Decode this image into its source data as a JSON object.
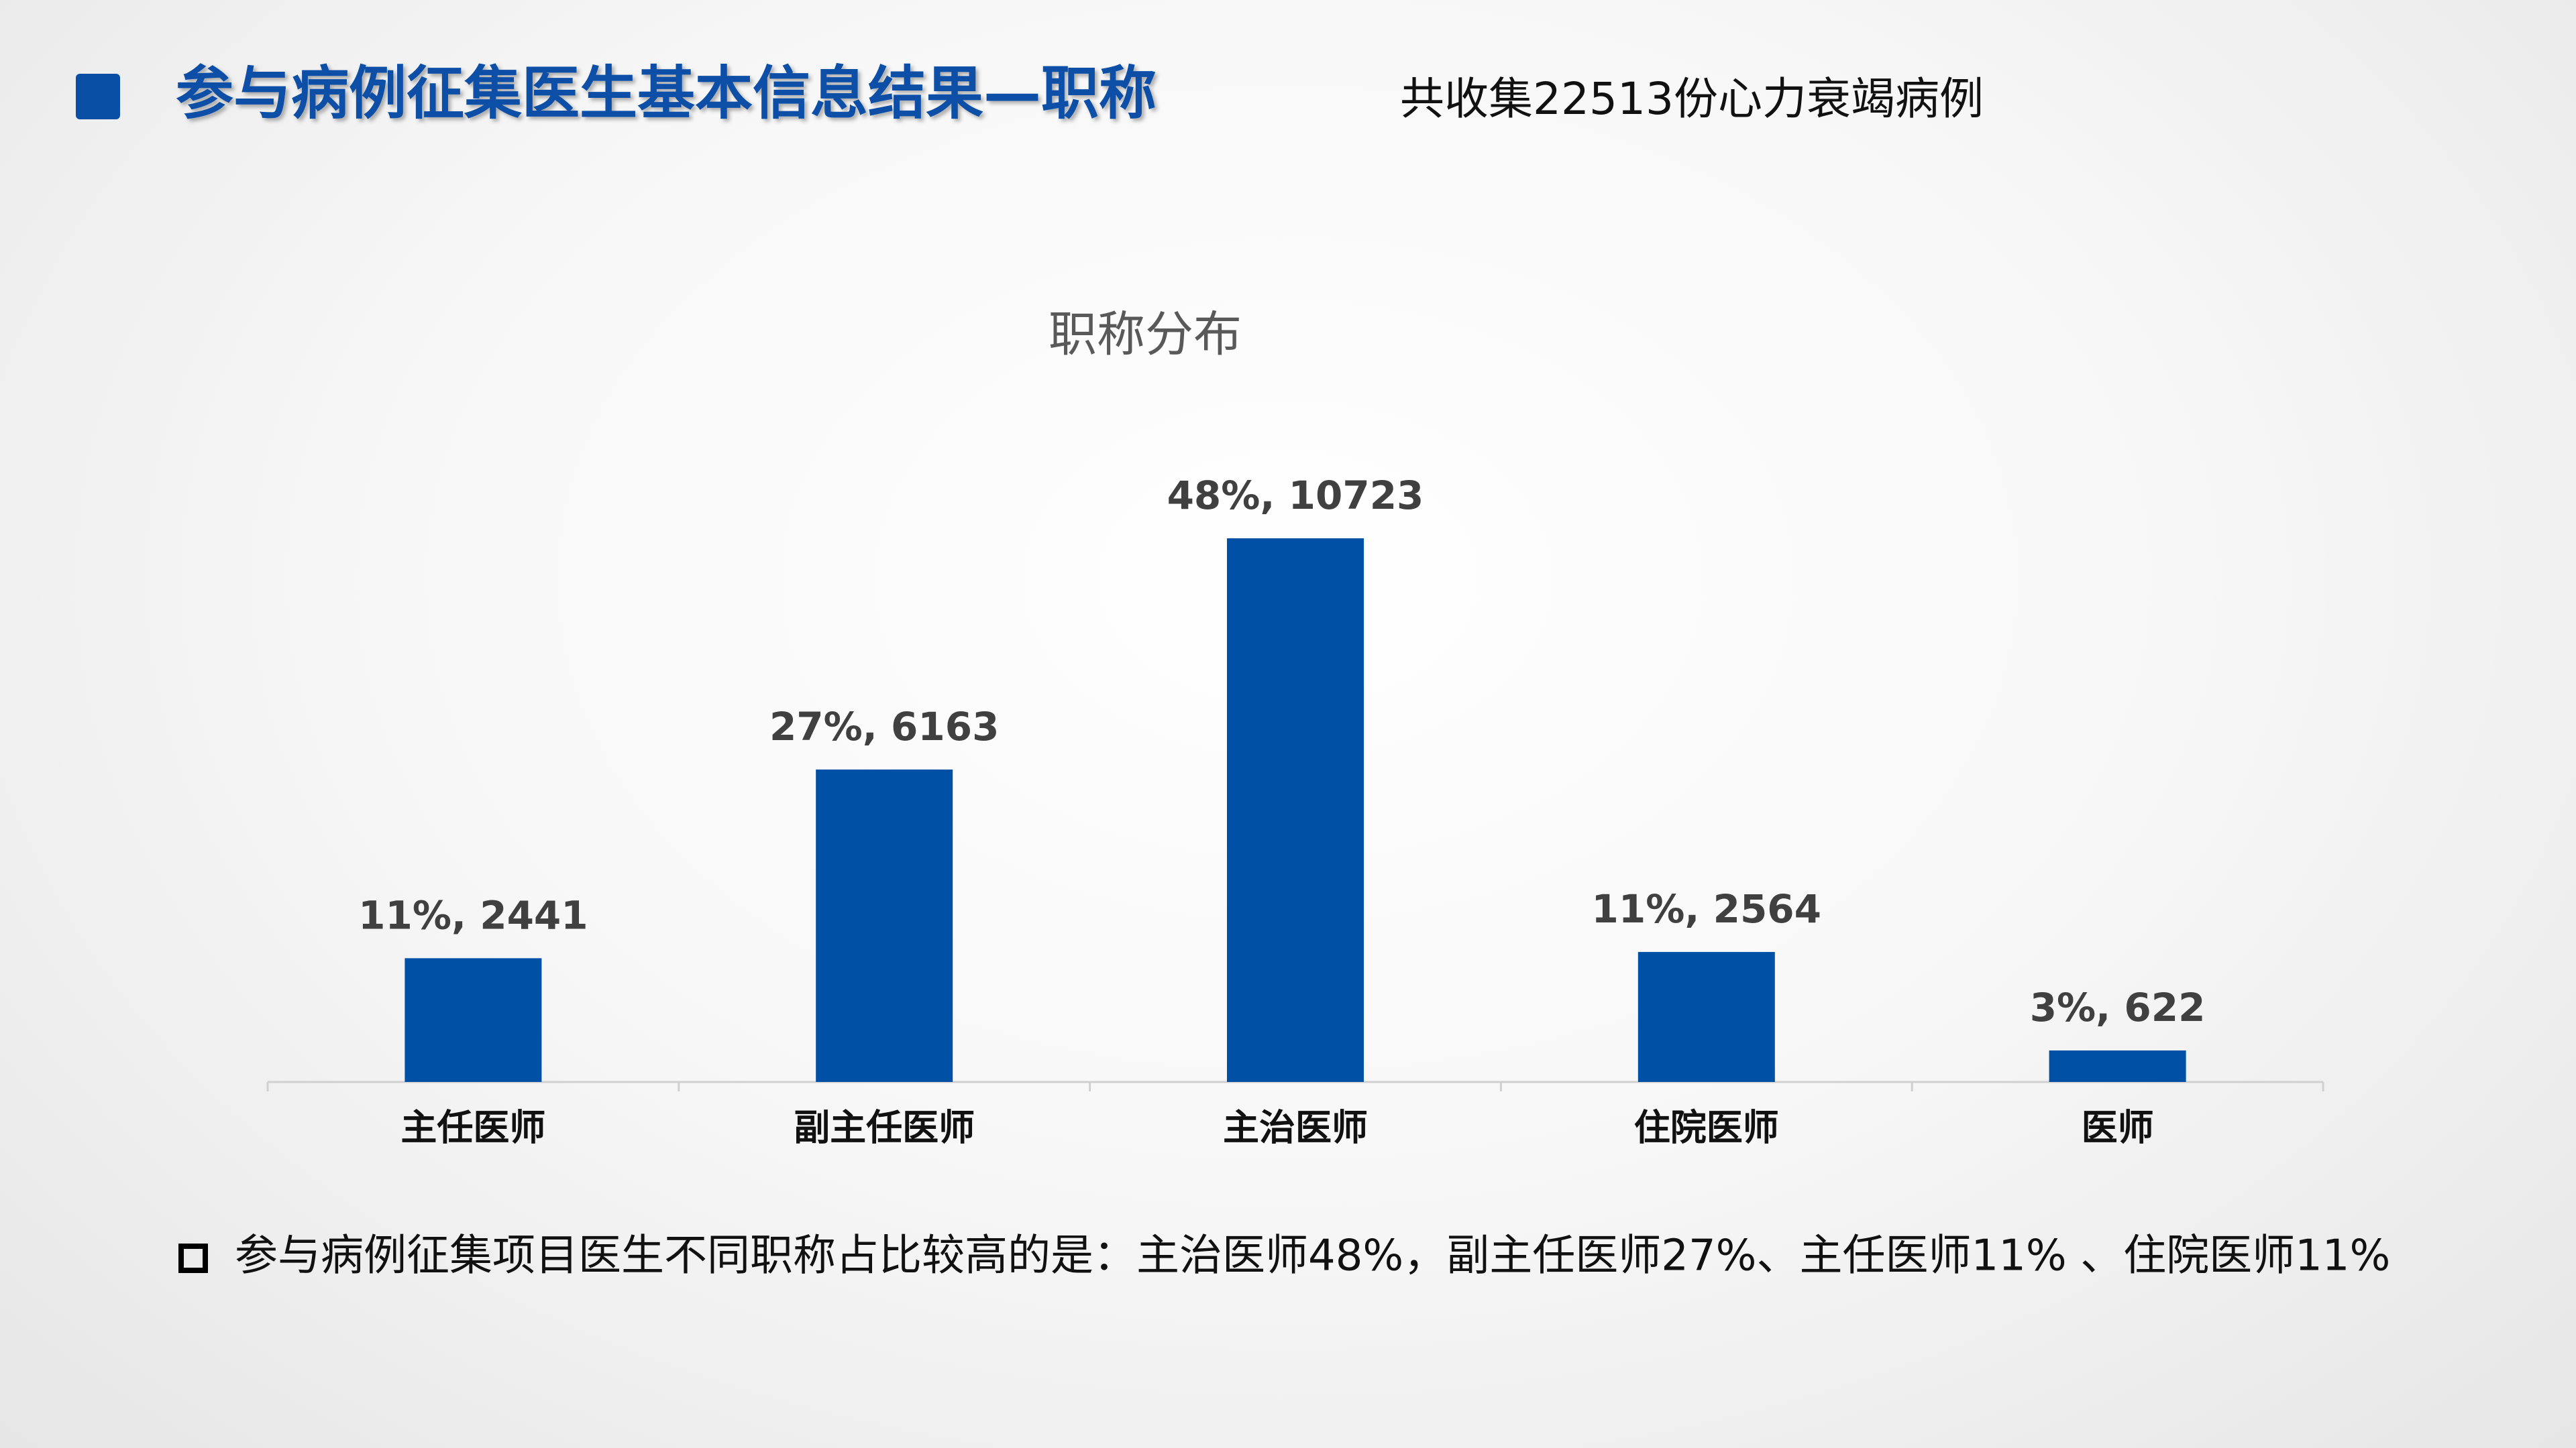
{
  "header": {
    "title": "参与病例征集医生基本信息结果—职称",
    "subtitle": "共收集22513份心力衰竭病例"
  },
  "chart_data": {
    "type": "bar",
    "title": "职称分布",
    "categories": [
      "主任医师",
      "副主任医师",
      "主治医师",
      "住院医师",
      "医师"
    ],
    "values": [
      2441,
      6163,
      10723,
      2564,
      622
    ],
    "value_labels": [
      "11%, 2441",
      "27%, 6163",
      "48%, 10723",
      "11%, 2564",
      "3%, 622"
    ],
    "color": "#0050a5"
  },
  "note": "参与病例征集项目医生不同职称占比较高的是：主治医师48%，副主任医师27%、主任医师11% 、住院医师11%"
}
